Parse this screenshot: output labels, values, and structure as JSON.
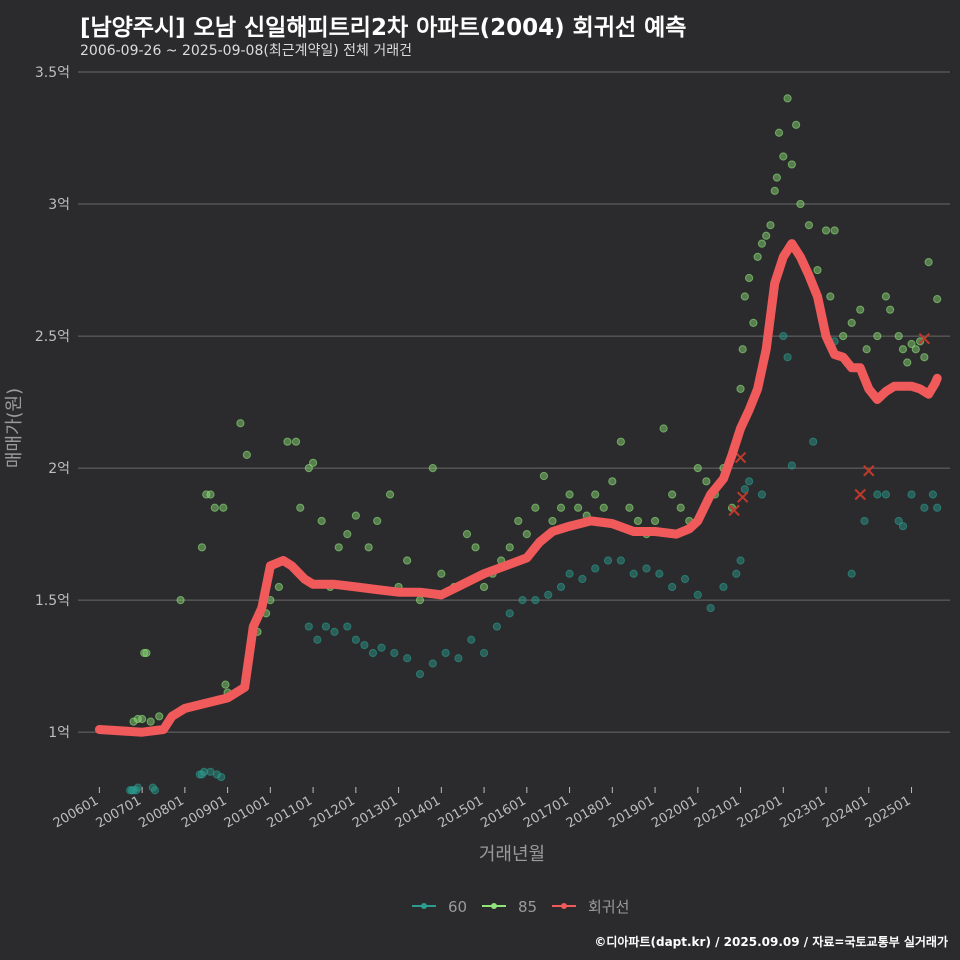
{
  "title": "[남양주시] 오남 신일해피트리2차 아파트(2004) 회귀선 예측",
  "subtitle": "2006-09-26 ~ 2025-09-08(최근계약일) 전체 거래건",
  "credit": "©디아파트(dapt.kr) / 2025.09.09 / 자료=국토교통부 실거래가",
  "colors": {
    "background": "#2b2b2d",
    "grid": "#6a6a6a",
    "series_60": "#2a9d8f",
    "series_85": "#8fe37a",
    "regression": "#f05a5a",
    "axis_text": "#bdbdbd"
  },
  "chart_data": {
    "type": "scatter",
    "xlabel": "거래년월",
    "ylabel": "매매가(원)",
    "xlim": [
      2005.5,
      2025.9
    ],
    "ylim": [
      0.8,
      3.5
    ],
    "x_ticks": [
      {
        "label": "200601",
        "x": 2006.0
      },
      {
        "label": "200701",
        "x": 2007.0
      },
      {
        "label": "200801",
        "x": 2008.0
      },
      {
        "label": "200901",
        "x": 2009.0
      },
      {
        "label": "201001",
        "x": 2010.0
      },
      {
        "label": "201101",
        "x": 2011.0
      },
      {
        "label": "201201",
        "x": 2012.0
      },
      {
        "label": "201301",
        "x": 2013.0
      },
      {
        "label": "201401",
        "x": 2014.0
      },
      {
        "label": "201501",
        "x": 2015.0
      },
      {
        "label": "201601",
        "x": 2016.0
      },
      {
        "label": "201701",
        "x": 2017.0
      },
      {
        "label": "201801",
        "x": 2018.0
      },
      {
        "label": "201901",
        "x": 2019.0
      },
      {
        "label": "202001",
        "x": 2020.0
      },
      {
        "label": "202101",
        "x": 2021.0
      },
      {
        "label": "202201",
        "x": 2022.0
      },
      {
        "label": "202301",
        "x": 2023.0
      },
      {
        "label": "202401",
        "x": 2024.0
      },
      {
        "label": "202501",
        "x": 2025.0
      }
    ],
    "y_ticks": [
      {
        "label": "1억",
        "y": 1.0
      },
      {
        "label": "1.5억",
        "y": 1.5
      },
      {
        "label": "2억",
        "y": 2.0
      },
      {
        "label": "2.5억",
        "y": 2.5
      },
      {
        "label": "3억",
        "y": 3.0
      },
      {
        "label": "3.5억",
        "y": 3.5
      }
    ],
    "legend": {
      "position": "bottom",
      "items": [
        {
          "label": "60",
          "key": "series_60"
        },
        {
          "label": "85",
          "key": "series_85"
        },
        {
          "label": "회귀선",
          "key": "regression"
        }
      ]
    },
    "series": [
      {
        "name": "60",
        "points": [
          [
            2006.72,
            0.78
          ],
          [
            2006.76,
            0.78
          ],
          [
            2006.8,
            0.78
          ],
          [
            2006.86,
            0.78
          ],
          [
            2006.9,
            0.79
          ],
          [
            2007.25,
            0.79
          ],
          [
            2007.3,
            0.78
          ],
          [
            2008.35,
            0.84
          ],
          [
            2008.4,
            0.84
          ],
          [
            2008.45,
            0.85
          ],
          [
            2008.6,
            0.85
          ],
          [
            2008.75,
            0.84
          ],
          [
            2008.85,
            0.83
          ],
          [
            2010.9,
            1.4
          ],
          [
            2011.1,
            1.35
          ],
          [
            2011.3,
            1.4
          ],
          [
            2011.5,
            1.38
          ],
          [
            2011.8,
            1.4
          ],
          [
            2012.0,
            1.35
          ],
          [
            2012.2,
            1.33
          ],
          [
            2012.4,
            1.3
          ],
          [
            2012.6,
            1.32
          ],
          [
            2012.9,
            1.3
          ],
          [
            2013.2,
            1.28
          ],
          [
            2013.5,
            1.22
          ],
          [
            2013.8,
            1.26
          ],
          [
            2014.1,
            1.3
          ],
          [
            2014.4,
            1.28
          ],
          [
            2014.7,
            1.35
          ],
          [
            2015.0,
            1.3
          ],
          [
            2015.3,
            1.4
          ],
          [
            2015.6,
            1.45
          ],
          [
            2015.9,
            1.5
          ],
          [
            2016.2,
            1.5
          ],
          [
            2016.5,
            1.52
          ],
          [
            2016.8,
            1.55
          ],
          [
            2017.0,
            1.6
          ],
          [
            2017.3,
            1.58
          ],
          [
            2017.6,
            1.62
          ],
          [
            2017.9,
            1.65
          ],
          [
            2018.2,
            1.65
          ],
          [
            2018.5,
            1.6
          ],
          [
            2018.8,
            1.62
          ],
          [
            2019.1,
            1.6
          ],
          [
            2019.4,
            1.55
          ],
          [
            2019.7,
            1.58
          ],
          [
            2020.0,
            1.52
          ],
          [
            2020.3,
            1.47
          ],
          [
            2020.6,
            1.55
          ],
          [
            2020.9,
            1.6
          ],
          [
            2021.0,
            1.65
          ],
          [
            2021.1,
            1.92
          ],
          [
            2021.2,
            1.95
          ],
          [
            2021.5,
            1.9
          ],
          [
            2022.0,
            2.5
          ],
          [
            2022.1,
            2.42
          ],
          [
            2022.2,
            2.01
          ],
          [
            2022.7,
            2.1
          ],
          [
            2023.2,
            2.48
          ],
          [
            2023.6,
            1.6
          ],
          [
            2023.9,
            1.8
          ],
          [
            2024.2,
            1.9
          ],
          [
            2024.4,
            1.9
          ],
          [
            2024.7,
            1.8
          ],
          [
            2024.8,
            1.78
          ],
          [
            2025.0,
            1.9
          ],
          [
            2025.3,
            1.85
          ],
          [
            2025.5,
            1.9
          ],
          [
            2025.6,
            1.85
          ]
        ]
      },
      {
        "name": "85",
        "points": [
          [
            2006.8,
            1.04
          ],
          [
            2006.9,
            1.05
          ],
          [
            2007.0,
            1.05
          ],
          [
            2007.2,
            1.04
          ],
          [
            2007.4,
            1.06
          ],
          [
            2007.05,
            1.3
          ],
          [
            2007.1,
            1.3
          ],
          [
            2007.9,
            1.5
          ],
          [
            2008.4,
            1.7
          ],
          [
            2008.5,
            1.9
          ],
          [
            2008.6,
            1.9
          ],
          [
            2008.7,
            1.85
          ],
          [
            2008.9,
            1.85
          ],
          [
            2008.95,
            1.18
          ],
          [
            2009.0,
            1.15
          ],
          [
            2009.3,
            2.17
          ],
          [
            2009.45,
            2.05
          ],
          [
            2009.6,
            1.4
          ],
          [
            2009.7,
            1.38
          ],
          [
            2009.9,
            1.45
          ],
          [
            2010.0,
            1.5
          ],
          [
            2010.2,
            1.55
          ],
          [
            2010.4,
            2.1
          ],
          [
            2010.6,
            2.1
          ],
          [
            2010.7,
            1.85
          ],
          [
            2010.9,
            2.0
          ],
          [
            2011.0,
            2.02
          ],
          [
            2011.2,
            1.8
          ],
          [
            2011.4,
            1.55
          ],
          [
            2011.6,
            1.7
          ],
          [
            2011.8,
            1.75
          ],
          [
            2012.0,
            1.82
          ],
          [
            2012.3,
            1.7
          ],
          [
            2012.5,
            1.8
          ],
          [
            2012.8,
            1.9
          ],
          [
            2013.0,
            1.55
          ],
          [
            2013.2,
            1.65
          ],
          [
            2013.5,
            1.5
          ],
          [
            2013.8,
            2.0
          ],
          [
            2014.0,
            1.6
          ],
          [
            2014.3,
            1.55
          ],
          [
            2014.6,
            1.75
          ],
          [
            2014.8,
            1.7
          ],
          [
            2015.0,
            1.55
          ],
          [
            2015.2,
            1.6
          ],
          [
            2015.4,
            1.65
          ],
          [
            2015.6,
            1.7
          ],
          [
            2015.8,
            1.8
          ],
          [
            2016.0,
            1.75
          ],
          [
            2016.2,
            1.85
          ],
          [
            2016.4,
            1.97
          ],
          [
            2016.6,
            1.8
          ],
          [
            2016.8,
            1.85
          ],
          [
            2017.0,
            1.9
          ],
          [
            2017.2,
            1.85
          ],
          [
            2017.4,
            1.82
          ],
          [
            2017.6,
            1.9
          ],
          [
            2017.8,
            1.85
          ],
          [
            2018.0,
            1.95
          ],
          [
            2018.2,
            2.1
          ],
          [
            2018.4,
            1.85
          ],
          [
            2018.6,
            1.8
          ],
          [
            2018.8,
            1.75
          ],
          [
            2019.0,
            1.8
          ],
          [
            2019.2,
            2.15
          ],
          [
            2019.4,
            1.9
          ],
          [
            2019.6,
            1.85
          ],
          [
            2019.8,
            1.8
          ],
          [
            2020.0,
            2.0
          ],
          [
            2020.2,
            1.95
          ],
          [
            2020.4,
            1.9
          ],
          [
            2020.6,
            2.0
          ],
          [
            2020.8,
            1.85
          ],
          [
            2020.9,
            2.1
          ],
          [
            2021.0,
            2.3
          ],
          [
            2021.05,
            2.45
          ],
          [
            2021.1,
            2.65
          ],
          [
            2021.2,
            2.72
          ],
          [
            2021.3,
            2.55
          ],
          [
            2021.4,
            2.8
          ],
          [
            2021.5,
            2.85
          ],
          [
            2021.6,
            2.88
          ],
          [
            2021.7,
            2.92
          ],
          [
            2021.8,
            3.05
          ],
          [
            2021.85,
            3.1
          ],
          [
            2021.9,
            3.27
          ],
          [
            2022.0,
            3.18
          ],
          [
            2022.1,
            3.4
          ],
          [
            2022.2,
            3.15
          ],
          [
            2022.3,
            3.3
          ],
          [
            2022.4,
            3.0
          ],
          [
            2022.6,
            2.92
          ],
          [
            2022.8,
            2.75
          ],
          [
            2023.0,
            2.9
          ],
          [
            2023.1,
            2.65
          ],
          [
            2023.2,
            2.9
          ],
          [
            2023.4,
            2.5
          ],
          [
            2023.6,
            2.55
          ],
          [
            2023.8,
            2.6
          ],
          [
            2023.95,
            2.45
          ],
          [
            2024.2,
            2.5
          ],
          [
            2024.4,
            2.65
          ],
          [
            2024.5,
            2.6
          ],
          [
            2024.7,
            2.5
          ],
          [
            2024.8,
            2.45
          ],
          [
            2024.9,
            2.4
          ],
          [
            2025.0,
            2.47
          ],
          [
            2025.1,
            2.45
          ],
          [
            2025.2,
            2.48
          ],
          [
            2025.4,
            2.78
          ],
          [
            2025.6,
            2.64
          ],
          [
            2025.3,
            2.42
          ]
        ]
      },
      {
        "name": "회귀선",
        "points": [
          [
            2006.0,
            1.01
          ],
          [
            2007.0,
            1.0
          ],
          [
            2007.5,
            1.01
          ],
          [
            2007.7,
            1.06
          ],
          [
            2008.0,
            1.09
          ],
          [
            2008.5,
            1.11
          ],
          [
            2009.0,
            1.13
          ],
          [
            2009.4,
            1.17
          ],
          [
            2009.6,
            1.4
          ],
          [
            2009.8,
            1.47
          ],
          [
            2010.0,
            1.63
          ],
          [
            2010.3,
            1.65
          ],
          [
            2010.5,
            1.63
          ],
          [
            2010.8,
            1.58
          ],
          [
            2011.0,
            1.56
          ],
          [
            2011.5,
            1.56
          ],
          [
            2012.0,
            1.55
          ],
          [
            2012.5,
            1.54
          ],
          [
            2013.0,
            1.53
          ],
          [
            2013.5,
            1.53
          ],
          [
            2014.0,
            1.52
          ],
          [
            2014.5,
            1.56
          ],
          [
            2015.0,
            1.6
          ],
          [
            2015.5,
            1.63
          ],
          [
            2016.0,
            1.66
          ],
          [
            2016.3,
            1.72
          ],
          [
            2016.6,
            1.76
          ],
          [
            2017.0,
            1.78
          ],
          [
            2017.5,
            1.8
          ],
          [
            2018.0,
            1.79
          ],
          [
            2018.5,
            1.76
          ],
          [
            2019.0,
            1.76
          ],
          [
            2019.5,
            1.75
          ],
          [
            2019.8,
            1.77
          ],
          [
            2020.0,
            1.8
          ],
          [
            2020.3,
            1.9
          ],
          [
            2020.6,
            1.96
          ],
          [
            2020.8,
            2.05
          ],
          [
            2021.0,
            2.15
          ],
          [
            2021.2,
            2.22
          ],
          [
            2021.4,
            2.3
          ],
          [
            2021.6,
            2.45
          ],
          [
            2021.8,
            2.7
          ],
          [
            2022.0,
            2.8
          ],
          [
            2022.2,
            2.85
          ],
          [
            2022.4,
            2.8
          ],
          [
            2022.6,
            2.73
          ],
          [
            2022.8,
            2.65
          ],
          [
            2023.0,
            2.5
          ],
          [
            2023.2,
            2.43
          ],
          [
            2023.4,
            2.42
          ],
          [
            2023.6,
            2.38
          ],
          [
            2023.8,
            2.38
          ],
          [
            2024.0,
            2.3
          ],
          [
            2024.2,
            2.26
          ],
          [
            2024.4,
            2.29
          ],
          [
            2024.6,
            2.31
          ],
          [
            2024.8,
            2.31
          ],
          [
            2025.0,
            2.31
          ],
          [
            2025.2,
            2.3
          ],
          [
            2025.4,
            2.28
          ],
          [
            2025.55,
            2.32
          ],
          [
            2025.6,
            2.34
          ]
        ]
      }
    ],
    "excluded_points": [
      [
        2021.0,
        2.04
      ],
      [
        2021.05,
        1.89
      ],
      [
        2020.85,
        1.84
      ],
      [
        2023.8,
        1.9
      ],
      [
        2024.0,
        1.99
      ],
      [
        2025.3,
        2.49
      ]
    ]
  }
}
